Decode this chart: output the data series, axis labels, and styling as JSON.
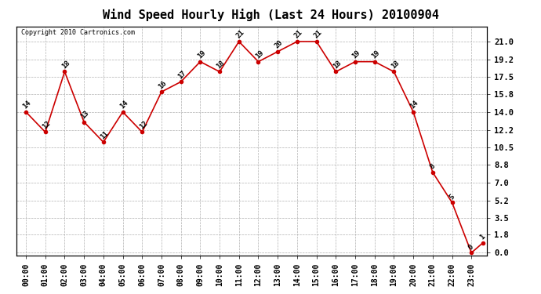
{
  "title": "Wind Speed Hourly High (Last 24 Hours) 20100904",
  "copyright": "Copyright 2010 Cartronics.com",
  "hours": [
    "00:00",
    "01:00",
    "02:00",
    "03:00",
    "04:00",
    "05:00",
    "06:00",
    "07:00",
    "08:00",
    "09:00",
    "10:00",
    "11:00",
    "12:00",
    "13:00",
    "14:00",
    "15:00",
    "16:00",
    "17:00",
    "18:00",
    "19:00",
    "20:00",
    "21:00",
    "22:00",
    "23:00"
  ],
  "wind_x": [
    0,
    1,
    2,
    3,
    4,
    5,
    6,
    7,
    8,
    9,
    10,
    11,
    12,
    13,
    14,
    15,
    16,
    17,
    18,
    19,
    20,
    21,
    22,
    23,
    23.6
  ],
  "wind_y": [
    14,
    12,
    18,
    13,
    11,
    14,
    12,
    16,
    17,
    19,
    18,
    21,
    19,
    20,
    21,
    21,
    18,
    19,
    19,
    18,
    14,
    8,
    5,
    0,
    1
  ],
  "yticks": [
    0.0,
    1.8,
    3.5,
    5.2,
    7.0,
    8.8,
    10.5,
    12.2,
    14.0,
    15.8,
    17.5,
    19.2,
    21.0
  ],
  "ylim": [
    -0.3,
    22.5
  ],
  "line_color": "#cc0000",
  "bg_color": "#ffffff",
  "grid_color": "#b0b0b0",
  "title_fontsize": 11,
  "tick_fontsize": 7,
  "copyright_fontsize": 6
}
